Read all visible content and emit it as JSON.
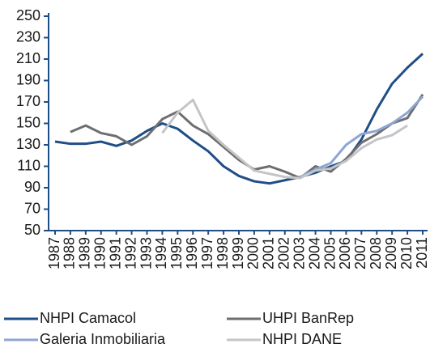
{
  "chart_data": {
    "type": "line",
    "categories": [
      "1987",
      "1988",
      "1989",
      "1990",
      "1991",
      "1992",
      "1993",
      "1994",
      "1995",
      "1996",
      "1997",
      "1998",
      "1999",
      "2000",
      "2001",
      "2002",
      "2003",
      "2004",
      "2005",
      "2006",
      "2007",
      "2008",
      "2009",
      "2010",
      "2011"
    ],
    "series": [
      {
        "name": "NHPI Camacol",
        "color": "#1f4e86",
        "values": [
          133,
          131,
          131,
          133,
          129,
          134,
          143,
          150,
          145,
          134,
          124,
          110,
          101,
          96,
          94,
          97,
          100,
          104,
          110,
          115,
          135,
          163,
          187,
          202,
          215
        ]
      },
      {
        "name": "UHPI BanRep",
        "color": "#6d6e71",
        "values": [
          null,
          142,
          148,
          141,
          138,
          130,
          138,
          154,
          161,
          148,
          140,
          128,
          116,
          107,
          110,
          105,
          99,
          110,
          105,
          117,
          132,
          140,
          150,
          155,
          177
        ]
      },
      {
        "name": "Galeria Inmobiliaria",
        "color": "#8fa6d2",
        "values": [
          null,
          null,
          null,
          null,
          null,
          null,
          null,
          null,
          null,
          null,
          null,
          null,
          null,
          null,
          null,
          null,
          100,
          107,
          113,
          130,
          140,
          143,
          150,
          160,
          175
        ]
      },
      {
        "name": "NHPI DANE",
        "color": "#c4c5c7",
        "values": [
          null,
          null,
          null,
          null,
          null,
          null,
          null,
          141,
          160,
          172,
          143,
          130,
          118,
          106,
          103,
          100,
          99,
          106,
          108,
          115,
          127,
          135,
          139,
          148,
          null
        ]
      }
    ],
    "ylim": [
      50,
      250
    ],
    "yticks": [
      50,
      70,
      90,
      110,
      130,
      150,
      170,
      190,
      210,
      230,
      250
    ]
  }
}
